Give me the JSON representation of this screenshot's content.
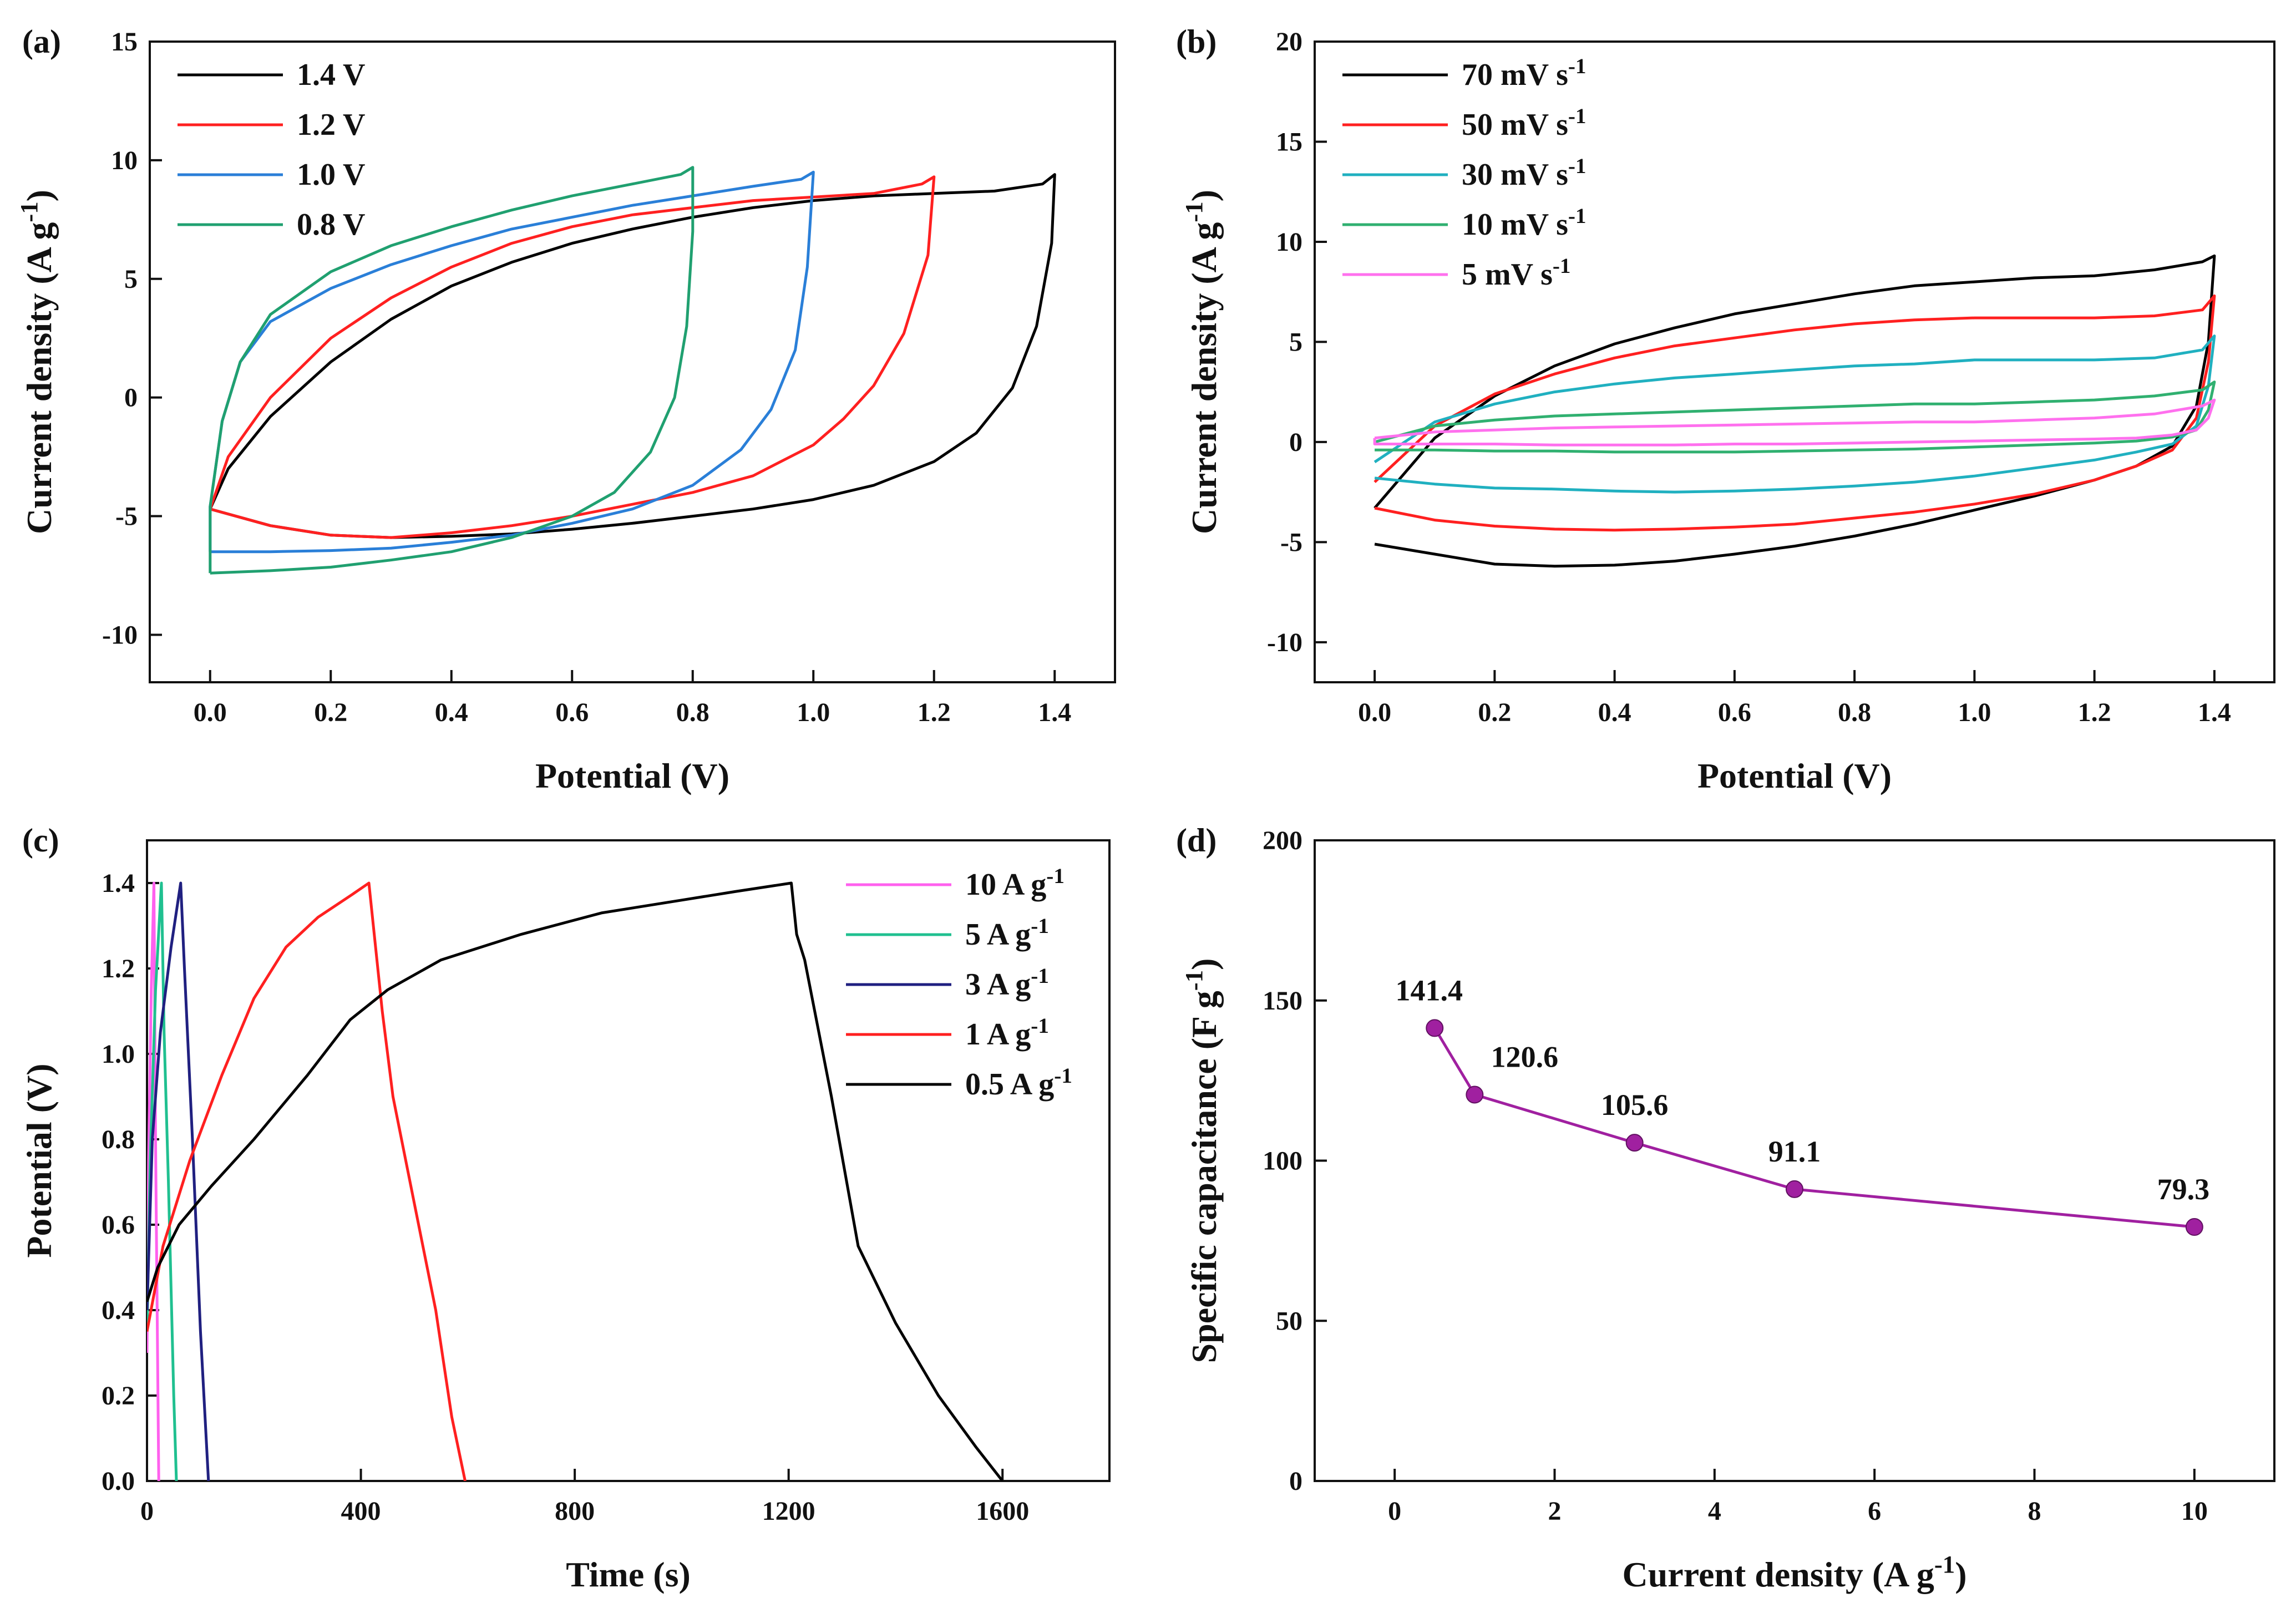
{
  "chart_data": [
    {
      "panel": "(a)",
      "type": "line",
      "xlabel": "Potential (V)",
      "ylabel": "Current density (A g-1)",
      "xlim": [
        -0.1,
        1.5
      ],
      "ylim": [
        -12,
        15
      ],
      "xticks": [
        "0.0",
        "0.2",
        "0.4",
        "0.6",
        "0.8",
        "1.0",
        "1.2",
        "1.4"
      ],
      "yticks": [
        "-10",
        "-5",
        "0",
        "5",
        "10",
        "15"
      ],
      "legend": "top-left",
      "series": [
        {
          "name": "1.4 V",
          "color": "#000000",
          "x": [
            0.0,
            0.03,
            0.1,
            0.2,
            0.3,
            0.4,
            0.5,
            0.6,
            0.7,
            0.8,
            0.9,
            1.0,
            1.1,
            1.2,
            1.3,
            1.38,
            1.4,
            1.395,
            1.37,
            1.33,
            1.27,
            1.2,
            1.1,
            1.0,
            0.9,
            0.8,
            0.7,
            0.6,
            0.5,
            0.4,
            0.3,
            0.2,
            0.1,
            0.0
          ],
          "y": [
            -4.7,
            -3.0,
            -0.8,
            1.5,
            3.3,
            4.7,
            5.7,
            6.5,
            7.1,
            7.6,
            8.0,
            8.3,
            8.5,
            8.6,
            8.7,
            9.0,
            9.4,
            6.5,
            3.0,
            0.4,
            -1.5,
            -2.7,
            -3.7,
            -4.3,
            -4.7,
            -5.0,
            -5.3,
            -5.55,
            -5.75,
            -5.85,
            -5.9,
            -5.8,
            -5.4,
            -4.7
          ]
        },
        {
          "name": "1.2 V",
          "color": "#ff2020",
          "x": [
            0.0,
            0.03,
            0.1,
            0.2,
            0.3,
            0.4,
            0.5,
            0.6,
            0.7,
            0.8,
            0.9,
            1.0,
            1.1,
            1.18,
            1.2,
            1.19,
            1.15,
            1.1,
            1.05,
            1.0,
            0.9,
            0.8,
            0.7,
            0.6,
            0.5,
            0.4,
            0.3,
            0.2,
            0.1,
            0.0
          ],
          "y": [
            -4.7,
            -2.5,
            0.0,
            2.5,
            4.2,
            5.5,
            6.5,
            7.2,
            7.7,
            8.0,
            8.3,
            8.45,
            8.6,
            9.0,
            9.3,
            6.0,
            2.7,
            0.5,
            -0.9,
            -2.0,
            -3.3,
            -4.0,
            -4.5,
            -5.0,
            -5.4,
            -5.7,
            -5.9,
            -5.8,
            -5.4,
            -4.7
          ]
        },
        {
          "name": "1.0 V",
          "color": "#2a7fd8",
          "x": [
            0.0,
            0.0,
            0.02,
            0.05,
            0.1,
            0.2,
            0.3,
            0.4,
            0.5,
            0.6,
            0.7,
            0.8,
            0.9,
            0.98,
            1.0,
            0.99,
            0.97,
            0.93,
            0.88,
            0.8,
            0.7,
            0.6,
            0.5,
            0.4,
            0.3,
            0.2,
            0.1,
            0.0
          ],
          "y": [
            -6.5,
            -4.6,
            -1.0,
            1.5,
            3.2,
            4.6,
            5.6,
            6.4,
            7.1,
            7.6,
            8.1,
            8.5,
            8.9,
            9.2,
            9.5,
            5.5,
            2.0,
            -0.5,
            -2.2,
            -3.7,
            -4.7,
            -5.3,
            -5.8,
            -6.1,
            -6.35,
            -6.45,
            -6.5,
            -6.5
          ]
        },
        {
          "name": "0.8 V",
          "color": "#20a070",
          "x": [
            0.0,
            0.0,
            0.02,
            0.05,
            0.1,
            0.2,
            0.3,
            0.4,
            0.5,
            0.6,
            0.7,
            0.78,
            0.8,
            0.8,
            0.79,
            0.77,
            0.73,
            0.67,
            0.6,
            0.5,
            0.4,
            0.3,
            0.2,
            0.1,
            0.0
          ],
          "y": [
            -7.4,
            -4.6,
            -1.0,
            1.5,
            3.5,
            5.3,
            6.4,
            7.2,
            7.9,
            8.5,
            9.0,
            9.4,
            9.7,
            7.0,
            3.0,
            0.0,
            -2.3,
            -4.0,
            -5.0,
            -5.9,
            -6.5,
            -6.85,
            -7.15,
            -7.3,
            -7.4
          ]
        }
      ]
    },
    {
      "panel": "(b)",
      "type": "line",
      "xlabel": "Potential (V)",
      "ylabel": "Current density (A g-1)",
      "xlim": [
        -0.1,
        1.5
      ],
      "ylim": [
        -12,
        20
      ],
      "xticks": [
        "0.0",
        "0.2",
        "0.4",
        "0.6",
        "0.8",
        "1.0",
        "1.2",
        "1.4"
      ],
      "yticks": [
        "-10",
        "-5",
        "0",
        "5",
        "10",
        "15",
        "20"
      ],
      "legend": "top-left",
      "series": [
        {
          "name": "70 mV s-1",
          "color": "#000000",
          "x": [
            0.0,
            0.1,
            0.2,
            0.3,
            0.4,
            0.5,
            0.6,
            0.7,
            0.8,
            0.9,
            1.0,
            1.1,
            1.2,
            1.3,
            1.38,
            1.4,
            1.39,
            1.37,
            1.33,
            1.27,
            1.2,
            1.1,
            1.0,
            0.9,
            0.8,
            0.7,
            0.6,
            0.5,
            0.4,
            0.3,
            0.2,
            0.1,
            0.0,
            0.0
          ],
          "y": [
            -3.3,
            0.2,
            2.3,
            3.8,
            4.9,
            5.7,
            6.4,
            6.9,
            7.4,
            7.8,
            8.0,
            8.2,
            8.3,
            8.6,
            9.0,
            9.3,
            5.0,
            1.8,
            -0.2,
            -1.2,
            -1.9,
            -2.7,
            -3.4,
            -4.1,
            -4.7,
            -5.2,
            -5.6,
            -5.95,
            -6.15,
            -6.2,
            -6.1,
            -5.6,
            -5.1,
            -5.1
          ]
        },
        {
          "name": "50 mV s-1",
          "color": "#ff2020",
          "x": [
            0.0,
            0.1,
            0.2,
            0.3,
            0.4,
            0.5,
            0.6,
            0.7,
            0.8,
            0.9,
            1.0,
            1.1,
            1.2,
            1.3,
            1.38,
            1.4,
            1.39,
            1.37,
            1.33,
            1.27,
            1.2,
            1.1,
            1.0,
            0.9,
            0.8,
            0.7,
            0.6,
            0.5,
            0.4,
            0.3,
            0.2,
            0.1,
            0.0,
            0.0
          ],
          "y": [
            -2.0,
            0.8,
            2.4,
            3.4,
            4.2,
            4.8,
            5.2,
            5.6,
            5.9,
            6.1,
            6.2,
            6.2,
            6.2,
            6.3,
            6.6,
            7.3,
            4.0,
            1.2,
            -0.4,
            -1.2,
            -1.9,
            -2.6,
            -3.1,
            -3.5,
            -3.8,
            -4.1,
            -4.25,
            -4.35,
            -4.4,
            -4.35,
            -4.2,
            -3.9,
            -3.3,
            -3.3
          ]
        },
        {
          "name": "30 mV s-1",
          "color": "#20b0c0",
          "x": [
            0.0,
            0.1,
            0.2,
            0.3,
            0.4,
            0.5,
            0.6,
            0.7,
            0.8,
            0.9,
            1.0,
            1.1,
            1.2,
            1.3,
            1.38,
            1.4,
            1.39,
            1.37,
            1.33,
            1.27,
            1.2,
            1.1,
            1.0,
            0.9,
            0.8,
            0.7,
            0.6,
            0.5,
            0.4,
            0.3,
            0.2,
            0.1,
            0.0,
            0.0
          ],
          "y": [
            -1.0,
            1.0,
            1.9,
            2.5,
            2.9,
            3.2,
            3.4,
            3.6,
            3.8,
            3.9,
            4.1,
            4.1,
            4.1,
            4.2,
            4.6,
            5.3,
            2.8,
            0.8,
            -0.1,
            -0.5,
            -0.9,
            -1.3,
            -1.7,
            -2.0,
            -2.2,
            -2.35,
            -2.45,
            -2.5,
            -2.45,
            -2.35,
            -2.3,
            -2.1,
            -1.8,
            -1.8
          ]
        },
        {
          "name": "10 mV s-1",
          "color": "#30b070",
          "x": [
            0.0,
            0.1,
            0.2,
            0.3,
            0.4,
            0.5,
            0.6,
            0.7,
            0.8,
            0.9,
            1.0,
            1.1,
            1.2,
            1.3,
            1.38,
            1.4,
            1.39,
            1.37,
            1.33,
            1.27,
            1.2,
            1.1,
            1.0,
            0.9,
            0.8,
            0.7,
            0.6,
            0.5,
            0.4,
            0.3,
            0.2,
            0.1,
            0.0,
            0.0
          ],
          "y": [
            0.0,
            0.8,
            1.1,
            1.3,
            1.4,
            1.5,
            1.6,
            1.7,
            1.8,
            1.9,
            1.9,
            2.0,
            2.1,
            2.3,
            2.6,
            3.0,
            1.6,
            0.6,
            0.25,
            0.05,
            -0.05,
            -0.15,
            -0.25,
            -0.35,
            -0.4,
            -0.45,
            -0.5,
            -0.5,
            -0.5,
            -0.45,
            -0.45,
            -0.4,
            -0.4,
            -0.4
          ]
        },
        {
          "name": "5 mV s-1",
          "color": "#ff70ee",
          "x": [
            0.0,
            0.1,
            0.2,
            0.3,
            0.4,
            0.5,
            0.6,
            0.7,
            0.8,
            0.9,
            1.0,
            1.1,
            1.2,
            1.3,
            1.38,
            1.4,
            1.39,
            1.37,
            1.33,
            1.27,
            1.2,
            1.1,
            1.0,
            0.9,
            0.8,
            0.7,
            0.6,
            0.5,
            0.4,
            0.3,
            0.2,
            0.1,
            0.0,
            0.0
          ],
          "y": [
            0.2,
            0.5,
            0.6,
            0.7,
            0.75,
            0.8,
            0.85,
            0.9,
            0.95,
            1.0,
            1.0,
            1.1,
            1.2,
            1.4,
            1.8,
            2.1,
            1.2,
            0.6,
            0.35,
            0.2,
            0.15,
            0.1,
            0.05,
            0.0,
            -0.05,
            -0.1,
            -0.1,
            -0.15,
            -0.15,
            -0.15,
            -0.1,
            -0.1,
            -0.1,
            0.2
          ]
        }
      ]
    },
    {
      "panel": "(c)",
      "type": "line",
      "xlabel": "Time (s)",
      "ylabel": "Potential (V)",
      "xlim": [
        0,
        1800
      ],
      "ylim": [
        0,
        1.5
      ],
      "xticks": [
        "0",
        "400",
        "800",
        "1200",
        "1600"
      ],
      "yticks": [
        "0.0",
        "0.2",
        "0.4",
        "0.6",
        "0.8",
        "1.0",
        "1.2",
        "1.4"
      ],
      "legend": "top-right",
      "series": [
        {
          "name": "10 A g-1",
          "color": "#ff60ee",
          "x": [
            0,
            3,
            8,
            13,
            16,
            22
          ],
          "y": [
            0.3,
            0.75,
            1.15,
            1.4,
            0.8,
            0.0
          ]
        },
        {
          "name": "5 A g-1",
          "color": "#20c090",
          "x": [
            0,
            6,
            16,
            27,
            32,
            40,
            50,
            55
          ],
          "y": [
            0.35,
            0.75,
            1.15,
            1.4,
            1.05,
            0.7,
            0.2,
            0.0
          ]
        },
        {
          "name": "3 A g-1",
          "color": "#202080",
          "x": [
            0,
            10,
            25,
            45,
            63,
            70,
            85,
            100,
            115
          ],
          "y": [
            0.4,
            0.8,
            1.05,
            1.25,
            1.4,
            1.2,
            0.8,
            0.35,
            0.0
          ]
        },
        {
          "name": "1 A g-1",
          "color": "#ff2020",
          "x": [
            0,
            30,
            80,
            140,
            200,
            260,
            320,
            380,
            415,
            440,
            460,
            500,
            540,
            570,
            595
          ],
          "y": [
            0.35,
            0.55,
            0.75,
            0.95,
            1.13,
            1.25,
            1.32,
            1.37,
            1.4,
            1.1,
            0.9,
            0.65,
            0.4,
            0.15,
            0.0
          ]
        },
        {
          "name": "0.5 A g-1",
          "color": "#000000",
          "x": [
            0,
            20,
            60,
            120,
            200,
            300,
            380,
            450,
            550,
            700,
            850,
            1000,
            1100,
            1205,
            1215,
            1230,
            1280,
            1330,
            1400,
            1480,
            1550,
            1600
          ],
          "y": [
            0.42,
            0.5,
            0.6,
            0.69,
            0.8,
            0.95,
            1.08,
            1.15,
            1.22,
            1.28,
            1.33,
            1.36,
            1.38,
            1.4,
            1.28,
            1.22,
            0.9,
            0.55,
            0.37,
            0.2,
            0.08,
            0.0
          ]
        }
      ]
    },
    {
      "panel": "(d)",
      "type": "line",
      "xlabel": "Current density (A g-1)",
      "ylabel": "Specific capacitance (F g-1)",
      "xlim": [
        -1,
        11
      ],
      "ylim": [
        0,
        200
      ],
      "xticks": [
        "0",
        "2",
        "4",
        "6",
        "8",
        "10"
      ],
      "yticks": [
        "0",
        "50",
        "100",
        "150",
        "200"
      ],
      "color": "#a020a0",
      "x": [
        0.5,
        1,
        3,
        5,
        10
      ],
      "values": [
        141.4,
        120.6,
        105.6,
        91.1,
        79.3
      ],
      "data_labels": [
        "141.4",
        "120.6",
        "105.6",
        "91.1",
        "79.3"
      ]
    }
  ]
}
